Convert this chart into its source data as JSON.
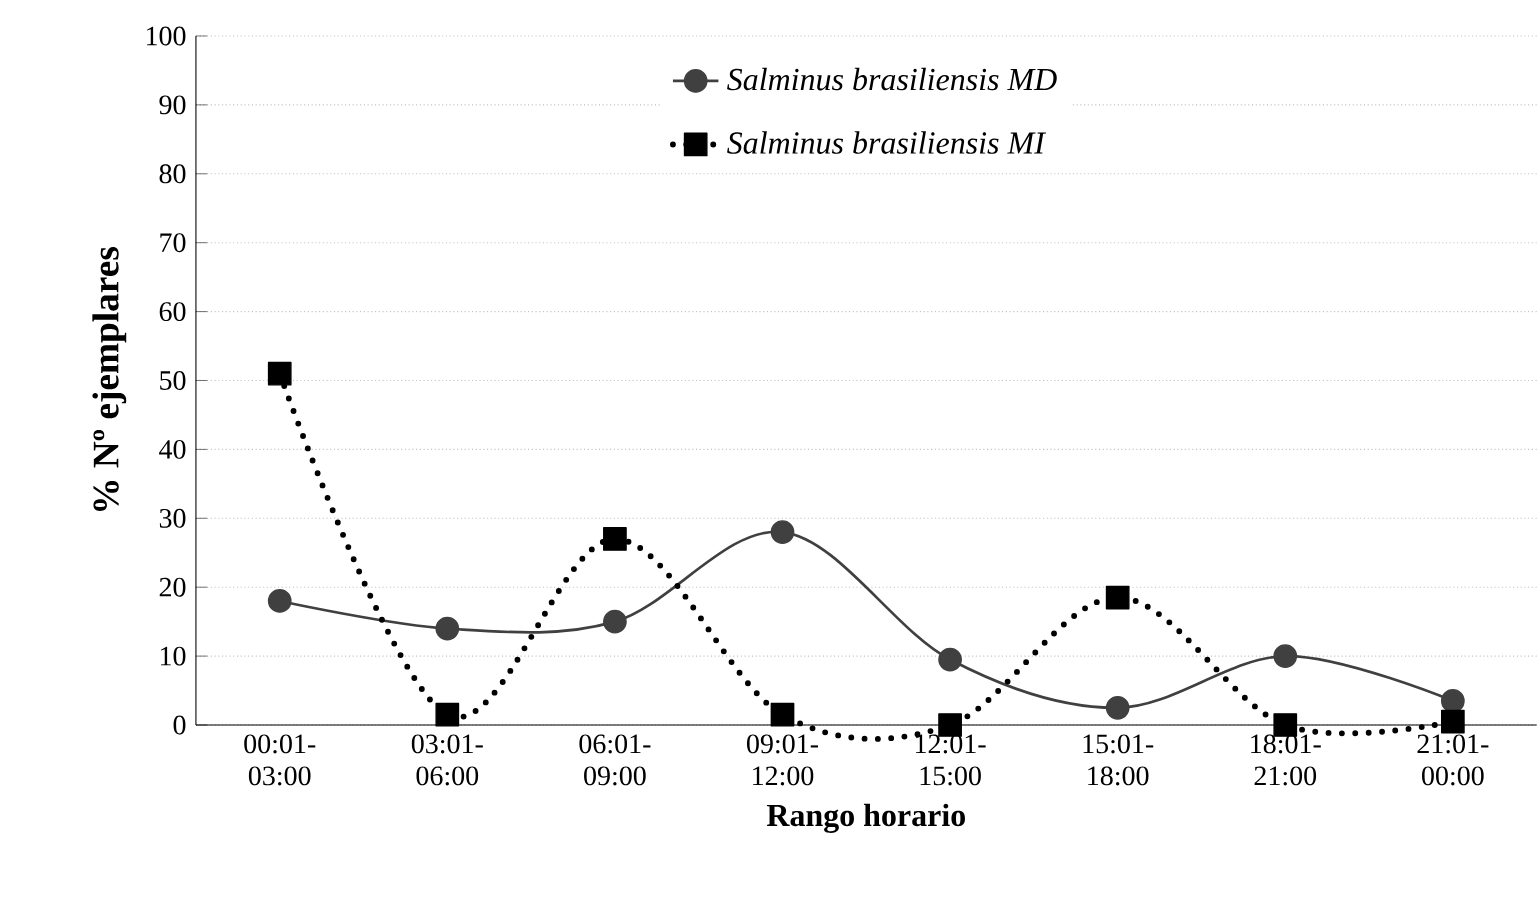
{
  "chart_data": {
    "type": "line",
    "xlabel": "Rango horario",
    "ylabel": "% Nº ejemplares",
    "categories": [
      "00:01-03:00",
      "03:01-06:00",
      "06:01-09:00",
      "09:01-12:00",
      "12:01-15:00",
      "15:01-18:00",
      "18:01-21:00",
      "21:01-00:00"
    ],
    "series": [
      {
        "name": "Salminus brasiliensis MD",
        "color": "#404040",
        "marker": "circle",
        "line_style": "solid",
        "values": [
          18,
          14,
          15,
          28,
          9.5,
          2.5,
          10,
          3.5
        ]
      },
      {
        "name": "Salminus brasiliensis MI",
        "color": "#000000",
        "marker": "square",
        "line_style": "dotted",
        "values": [
          51,
          1.5,
          27,
          1.5,
          0,
          18.5,
          0,
          0.5
        ]
      }
    ],
    "ylim": [
      0,
      100
    ],
    "yticks": [
      0,
      10,
      20,
      30,
      40,
      50,
      60,
      70,
      80,
      90,
      100
    ],
    "grid": "y",
    "legend": "top"
  }
}
